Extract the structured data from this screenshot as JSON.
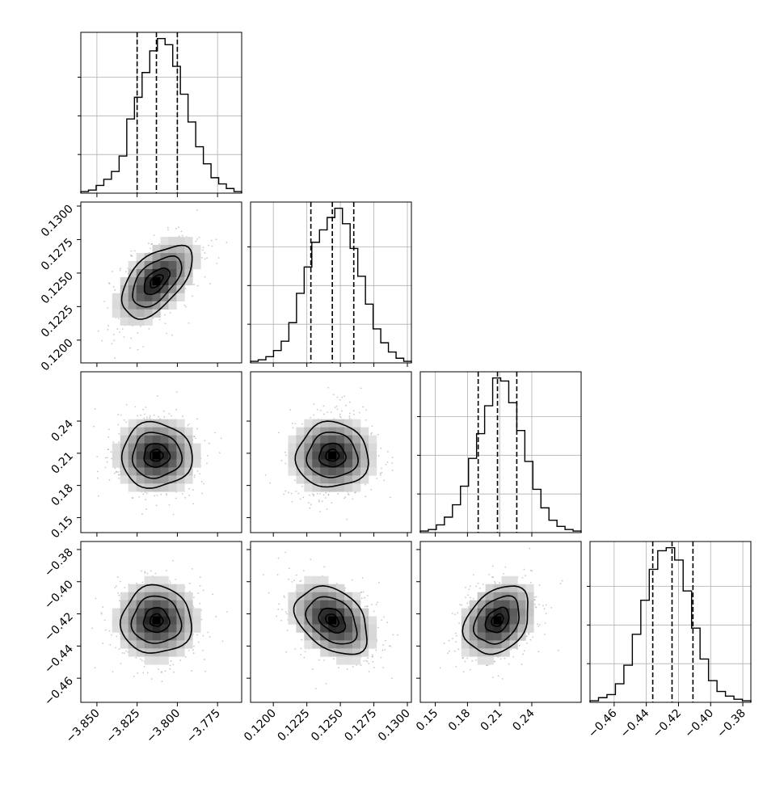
{
  "chart_data": {
    "type": "corner",
    "params": [
      {
        "range": [
          -3.86,
          -3.76
        ],
        "ticks": [
          -3.85,
          -3.825,
          -3.8,
          -3.775
        ],
        "tick_labels": [
          "−3.850",
          "−3.825",
          "−3.800",
          "−3.775"
        ],
        "quantiles": [
          -3.825,
          -3.813,
          -3.8
        ],
        "hist": [
          1,
          2,
          5,
          9,
          14,
          24,
          48,
          62,
          78,
          92,
          100,
          96,
          82,
          64,
          46,
          30,
          19,
          10,
          6,
          3,
          1
        ]
      },
      {
        "range": [
          0.1183,
          0.1303
        ],
        "ticks": [
          0.12,
          0.1225,
          0.125,
          0.1275,
          0.13
        ],
        "tick_labels": [
          "0.1200",
          "0.1225",
          "0.1250",
          "0.1275",
          "0.1300"
        ],
        "quantiles": [
          0.1228,
          0.1244,
          0.126
        ],
        "hist": [
          1,
          2,
          4,
          8,
          14,
          26,
          45,
          62,
          78,
          86,
          94,
          100,
          90,
          74,
          56,
          38,
          22,
          13,
          7,
          3,
          1
        ]
      },
      {
        "range": [
          0.136,
          0.286
        ],
        "ticks": [
          0.15,
          0.18,
          0.21,
          0.24
        ],
        "tick_labels": [
          "0.15",
          "0.18",
          "0.21",
          "0.24"
        ],
        "quantiles": [
          0.19,
          0.208,
          0.226
        ],
        "hist": [
          1,
          2,
          5,
          10,
          18,
          30,
          48,
          64,
          82,
          100,
          98,
          84,
          66,
          46,
          28,
          16,
          8,
          4,
          2,
          1
        ]
      },
      {
        "range": [
          -0.475,
          -0.375
        ],
        "ticks": [
          -0.46,
          -0.44,
          -0.42,
          -0.4,
          -0.38
        ],
        "tick_labels": [
          "−0.46",
          "−0.44",
          "−0.42",
          "−0.40",
          "−0.38"
        ],
        "quantiles": [
          -0.436,
          -0.424,
          -0.411
        ],
        "hist": [
          1,
          3,
          5,
          12,
          24,
          44,
          66,
          86,
          98,
          100,
          92,
          72,
          48,
          28,
          14,
          7,
          4,
          2,
          1
        ]
      }
    ],
    "correlations": {
      "1-0": 0.55,
      "2-0": 0.0,
      "2-1": 0.0,
      "3-0": 0.0,
      "3-1": -0.35,
      "3-2": 0.3
    },
    "means": [
      -3.813,
      0.1244,
      0.208,
      -0.424
    ],
    "sigmas": [
      0.013,
      0.0016,
      0.018,
      0.0125
    ],
    "grid": true
  }
}
